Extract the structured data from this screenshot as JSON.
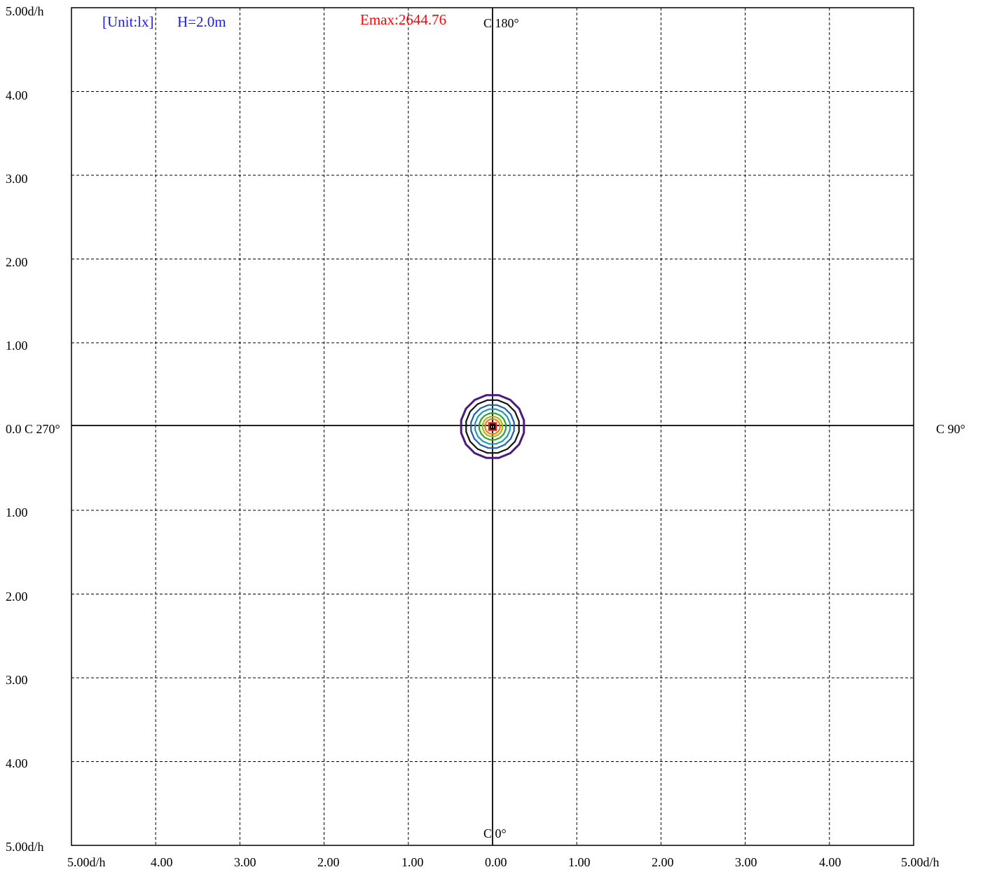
{
  "chart_data": {
    "type": "isolux",
    "unit_label": "[Unit:lx]",
    "height_label": "H=2.0m",
    "emax_label": "Emax:2644.76",
    "c_labels": {
      "top": "C 180°",
      "bottom": "C 0°",
      "left": "0.0 C 270°",
      "right": "C 90°"
    },
    "y_tick_labels": [
      "5.00d/h",
      "4.00",
      "3.00",
      "2.00",
      "1.00",
      "1.00",
      "2.00",
      "3.00",
      "4.00",
      "5.00d/h"
    ],
    "x_tick_labels": [
      "5.00d/h",
      "4.00",
      "3.00",
      "2.00",
      "1.00",
      "0.00",
      "1.00",
      "2.00",
      "3.00",
      "4.00",
      "5.00d/h"
    ],
    "xlim": [
      -5,
      5
    ],
    "ylim": [
      -5,
      5
    ],
    "grid": true,
    "contours": [
      {
        "color": "#4b1a7a",
        "radius": 0.38
      },
      {
        "color": "#111111",
        "radius": 0.32
      },
      {
        "color": "#1e5fa8",
        "radius": 0.26
      },
      {
        "color": "#1c9ab0",
        "radius": 0.21
      },
      {
        "color": "#34a030",
        "radius": 0.16
      },
      {
        "color": "#a8b820",
        "radius": 0.12
      },
      {
        "color": "#f08010",
        "radius": 0.09
      },
      {
        "color": "#e02020",
        "radius": 0.06
      },
      {
        "color": "#000000",
        "radius": 0.035
      }
    ]
  }
}
